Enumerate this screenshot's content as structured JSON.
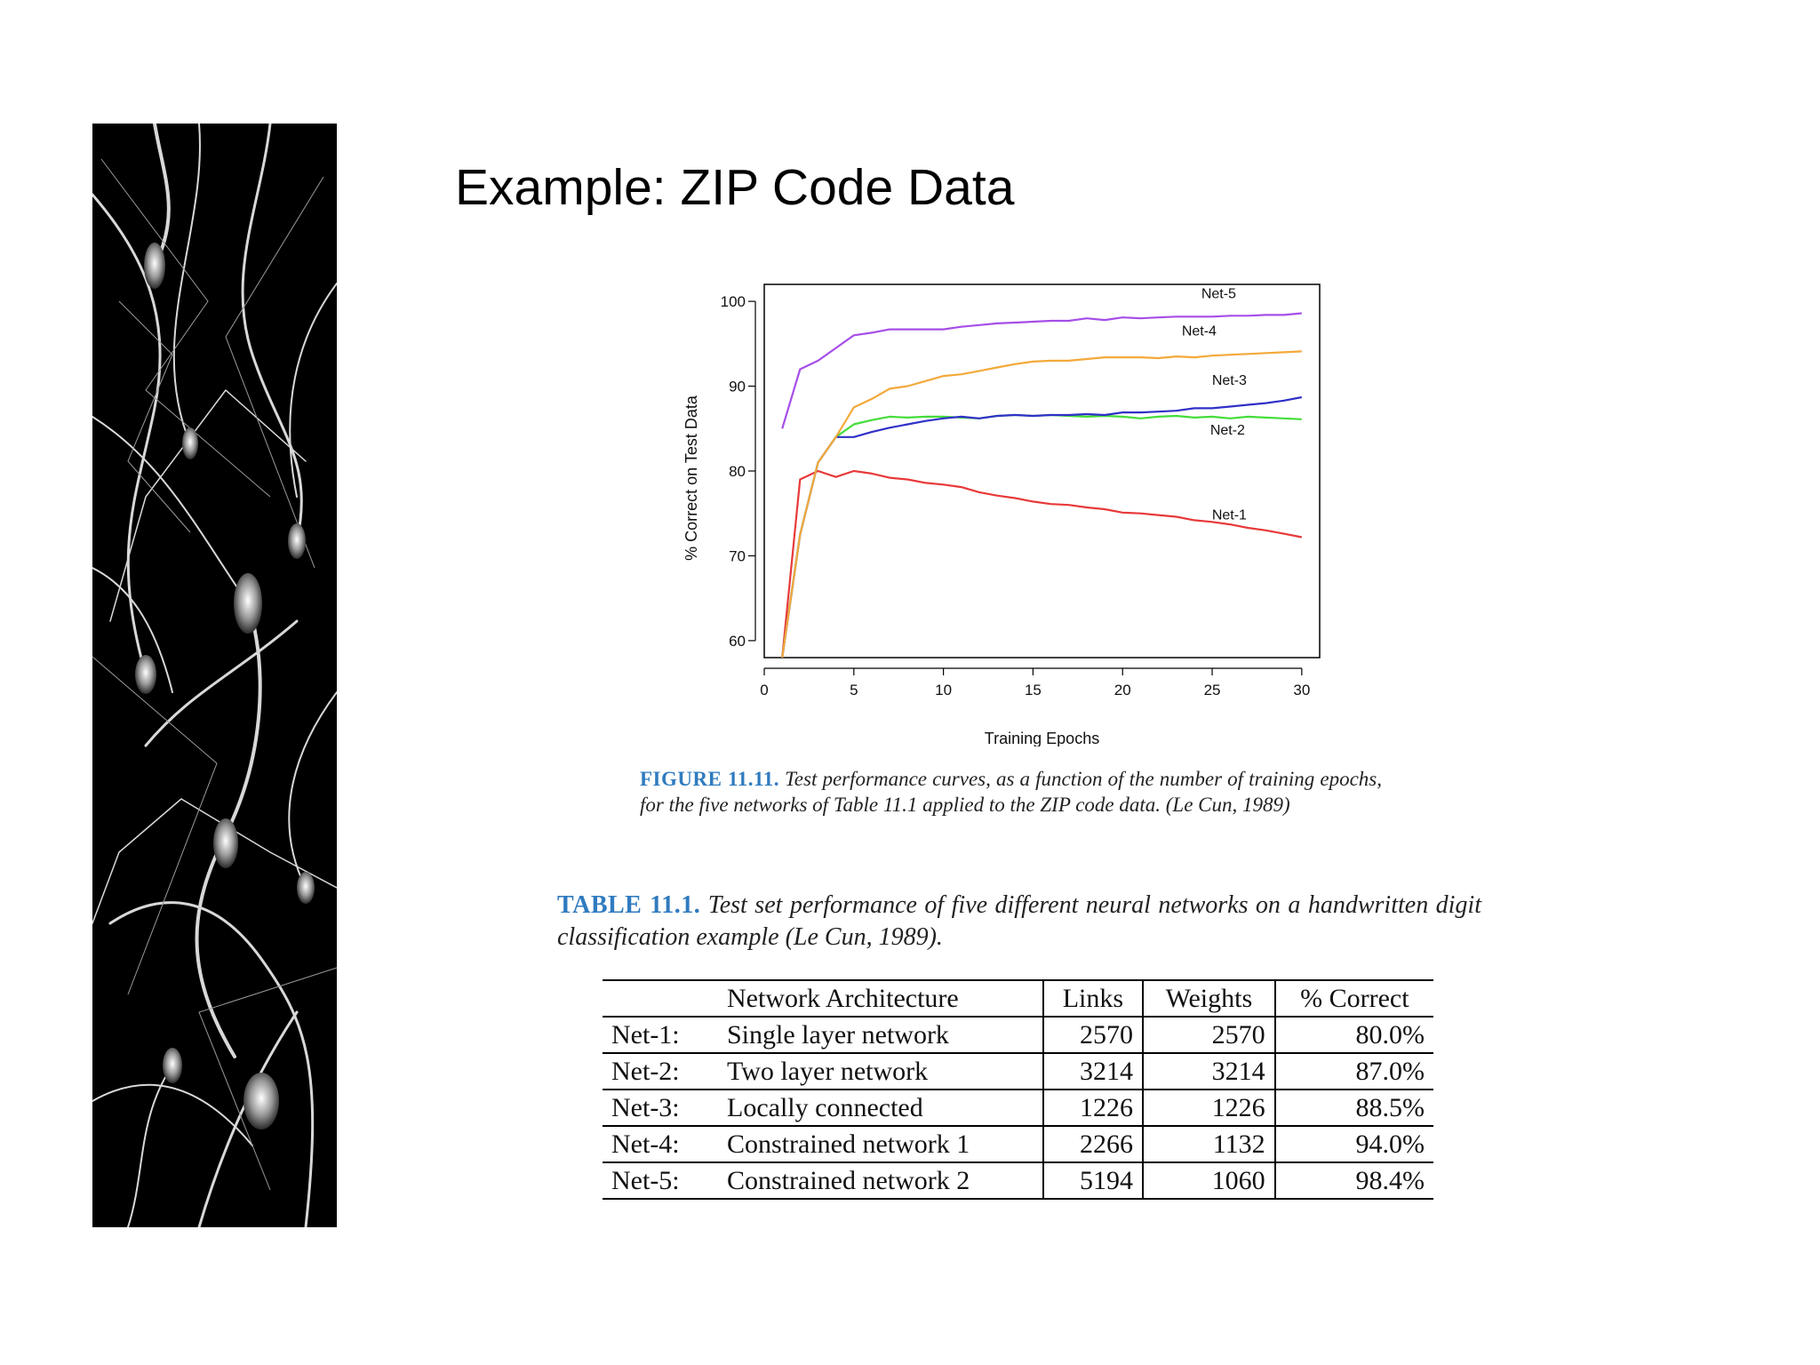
{
  "slide": {
    "title": "Example: ZIP Code Data"
  },
  "figure_caption": {
    "label": "FIGURE 11.11.",
    "text": "Test performance curves, as a function of the number of training epochs, for the five networks of Table 11.1 applied to the ZIP code data. (Le Cun, 1989)"
  },
  "table_caption": {
    "label": "TABLE 11.1.",
    "text": "Test set performance of five different neural networks on a handwritten digit classification example (Le Cun, 1989)."
  },
  "table": {
    "headers": [
      "",
      "Network Architecture",
      "Links",
      "Weights",
      "% Correct"
    ],
    "rows": [
      [
        "Net-1:",
        "Single layer network",
        "2570",
        "2570",
        "80.0%"
      ],
      [
        "Net-2:",
        "Two layer network",
        "3214",
        "3214",
        "87.0%"
      ],
      [
        "Net-3:",
        "Locally connected",
        "1226",
        "1226",
        "88.5%"
      ],
      [
        "Net-4:",
        "Constrained network 1",
        "2266",
        "1132",
        "94.0%"
      ],
      [
        "Net-5:",
        "Constrained network 2",
        "5194",
        "1060",
        "98.4%"
      ]
    ]
  },
  "chart_data": {
    "type": "line",
    "title": "",
    "xlabel": "Training Epochs",
    "ylabel": "% Correct on Test Data",
    "xlim": [
      0,
      31
    ],
    "ylim": [
      58,
      102
    ],
    "xticks": [
      0,
      5,
      10,
      15,
      20,
      25,
      30
    ],
    "yticks": [
      60,
      70,
      80,
      90,
      100
    ],
    "grid": false,
    "legend": "inline labels near line ends",
    "x": [
      1,
      2,
      3,
      4,
      5,
      6,
      7,
      8,
      9,
      10,
      11,
      12,
      13,
      14,
      15,
      16,
      17,
      18,
      19,
      20,
      21,
      22,
      23,
      24,
      25,
      26,
      27,
      28,
      29,
      30
    ],
    "series": [
      {
        "name": "Net-1",
        "color": "#e8393a",
        "values": [
          58,
          79,
          80,
          79.3,
          80,
          79.7,
          79.2,
          79,
          78.6,
          78.4,
          78.1,
          77.5,
          77.1,
          76.8,
          76.4,
          76.1,
          76,
          75.7,
          75.5,
          75.1,
          75,
          74.8,
          74.6,
          74.2,
          74,
          73.7,
          73.3,
          73,
          72.6,
          72.2
        ]
      },
      {
        "name": "Net-2",
        "color": "#44dd3a",
        "values": [
          58,
          72.5,
          81,
          84,
          85.5,
          86,
          86.4,
          86.3,
          86.4,
          86.4,
          86.3,
          86.2,
          86.5,
          86.6,
          86.5,
          86.6,
          86.5,
          86.4,
          86.5,
          86.4,
          86.2,
          86.4,
          86.5,
          86.3,
          86.4,
          86.2,
          86.4,
          86.3,
          86.2,
          86.1
        ]
      },
      {
        "name": "Net-3",
        "color": "#3030c8",
        "values": [
          58,
          72.5,
          81,
          84,
          84,
          84.6,
          85.1,
          85.5,
          85.9,
          86.2,
          86.4,
          86.2,
          86.5,
          86.6,
          86.5,
          86.6,
          86.6,
          86.7,
          86.6,
          86.9,
          86.9,
          87,
          87.1,
          87.4,
          87.4,
          87.6,
          87.8,
          88,
          88.3,
          88.7
        ]
      },
      {
        "name": "Net-4",
        "color": "#f3a93a",
        "values": [
          58,
          72.5,
          81,
          84,
          87.5,
          88.5,
          89.7,
          90,
          90.6,
          91.2,
          91.4,
          91.8,
          92.2,
          92.6,
          92.9,
          93,
          93,
          93.2,
          93.4,
          93.4,
          93.4,
          93.3,
          93.5,
          93.4,
          93.6,
          93.7,
          93.8,
          93.9,
          94,
          94.1
        ]
      },
      {
        "name": "Net-5",
        "color": "#a64ee8",
        "values": [
          85,
          92,
          93,
          94.5,
          96,
          96.3,
          96.7,
          96.7,
          96.7,
          96.7,
          97,
          97.2,
          97.4,
          97.5,
          97.6,
          97.7,
          97.7,
          98,
          97.8,
          98.1,
          98,
          98.1,
          98.2,
          98.2,
          98.2,
          98.3,
          98.3,
          98.4,
          98.4,
          98.6
        ]
      }
    ]
  }
}
